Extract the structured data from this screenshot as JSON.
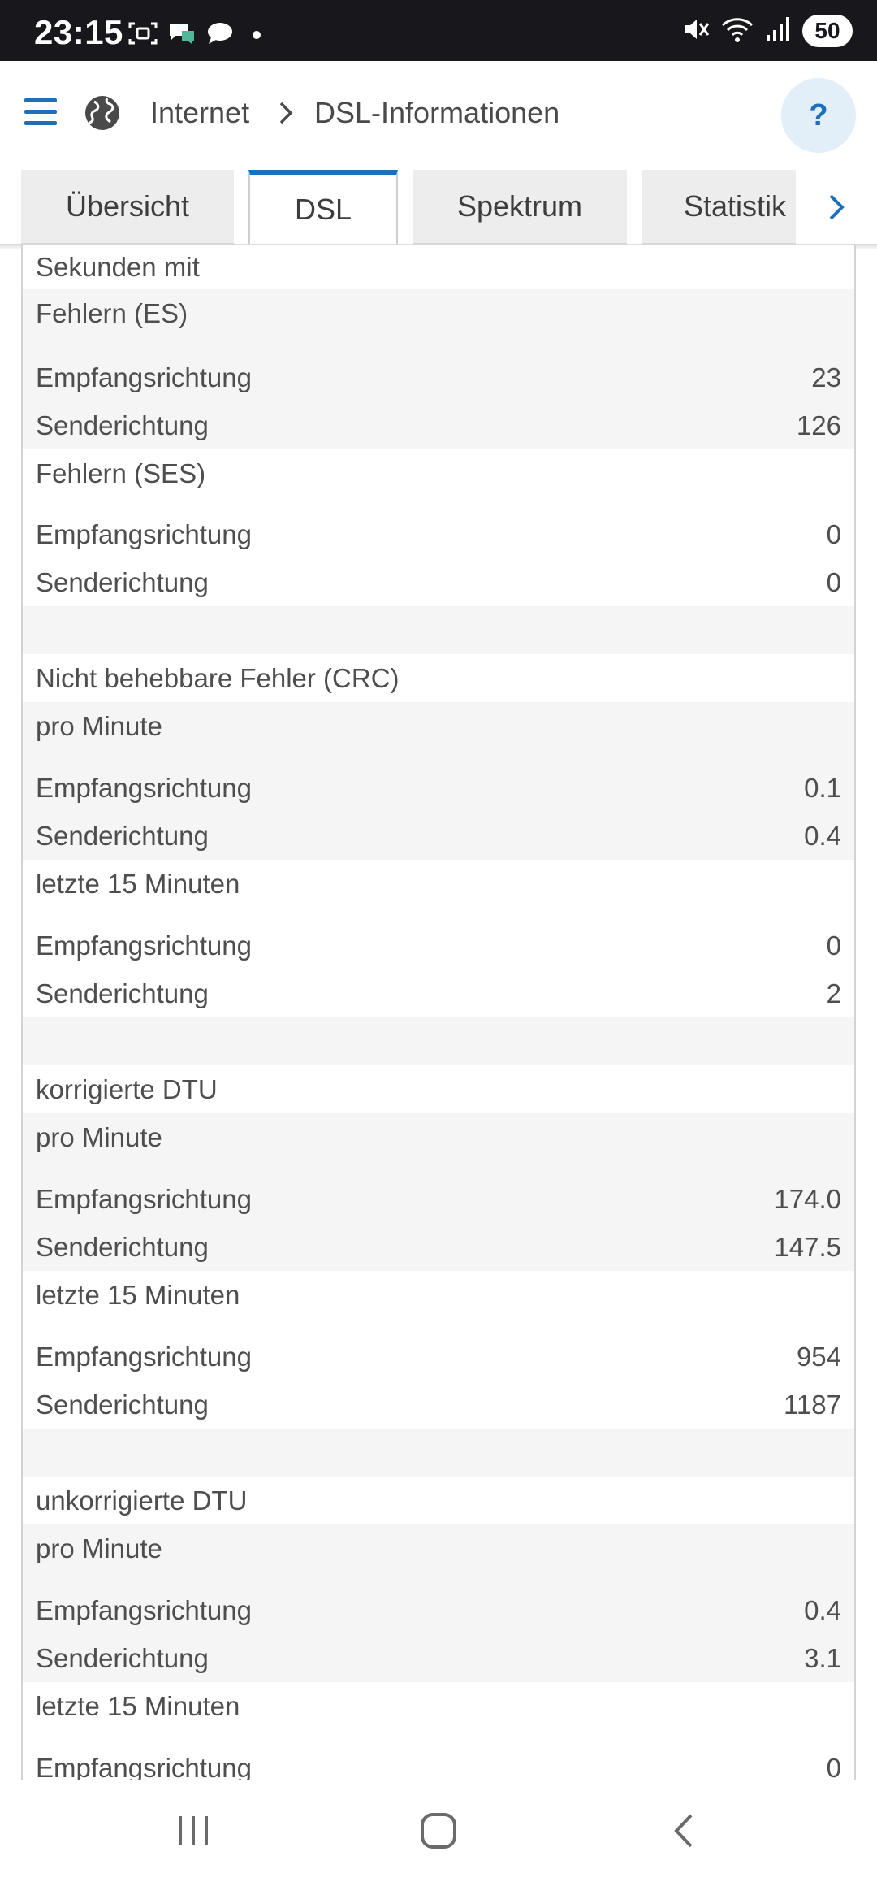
{
  "status_bar": {
    "time": "23:15",
    "battery": "50",
    "icons_left": [
      "screenshot-icon",
      "chat-bubbles-icon",
      "message-icon",
      "dot-icon"
    ],
    "icons_right": [
      "mute-icon",
      "wifi-icon",
      "signal-icon"
    ]
  },
  "header": {
    "menu_icon": "hamburger-menu-icon",
    "globe_icon": "globe-icon",
    "breadcrumb_1": "Internet",
    "breadcrumb_2": "DSL-Informationen",
    "help_label": "?"
  },
  "tabs": [
    {
      "label": "Übersicht",
      "active": false
    },
    {
      "label": "DSL",
      "active": true
    },
    {
      "label": "Spektrum",
      "active": false
    },
    {
      "label": "Statistik",
      "active": false
    }
  ],
  "rows": [
    {
      "label": "Sekunden mit",
      "value": ""
    },
    {
      "label": "Fehlern (ES)",
      "value": ""
    },
    {
      "label": "Empfangsrichtung",
      "value": "23"
    },
    {
      "label": "Senderichtung",
      "value": "126"
    },
    {
      "label": "Fehlern (SES)",
      "value": ""
    },
    {
      "label": "Empfangsrichtung",
      "value": "0"
    },
    {
      "label": "Senderichtung",
      "value": "0"
    },
    {
      "label": "",
      "value": ""
    },
    {
      "label": "Nicht behebbare Fehler (CRC)",
      "value": ""
    },
    {
      "label": "pro Minute",
      "value": ""
    },
    {
      "label": "Empfangsrichtung",
      "value": "0.1"
    },
    {
      "label": "Senderichtung",
      "value": "0.4"
    },
    {
      "label": "letzte 15 Minuten",
      "value": ""
    },
    {
      "label": "Empfangsrichtung",
      "value": "0"
    },
    {
      "label": "Senderichtung",
      "value": "2"
    },
    {
      "label": "",
      "value": ""
    },
    {
      "label": "korrigierte DTU",
      "value": ""
    },
    {
      "label": "pro Minute",
      "value": ""
    },
    {
      "label": "Empfangsrichtung",
      "value": "174.0"
    },
    {
      "label": "Senderichtung",
      "value": "147.5"
    },
    {
      "label": "letzte 15 Minuten",
      "value": ""
    },
    {
      "label": "Empfangsrichtung",
      "value": "954"
    },
    {
      "label": "Senderichtung",
      "value": "1187"
    },
    {
      "label": "",
      "value": ""
    },
    {
      "label": "unkorrigierte DTU",
      "value": ""
    },
    {
      "label": "pro Minute",
      "value": ""
    },
    {
      "label": "Empfangsrichtung",
      "value": "0.4"
    },
    {
      "label": "Senderichtung",
      "value": "3.1"
    },
    {
      "label": "letzte 15 Minuten",
      "value": ""
    },
    {
      "label": "Empfangsrichtung",
      "value": "0"
    }
  ],
  "nav": {
    "recents_icon": "recent-apps-icon",
    "home_icon": "home-icon",
    "back_icon": "back-icon"
  },
  "colors": {
    "accent": "#1d6fb8",
    "status_bar": "#17171c",
    "row_grey": "#f5f5f5",
    "tab_inactive": "#ededed"
  }
}
